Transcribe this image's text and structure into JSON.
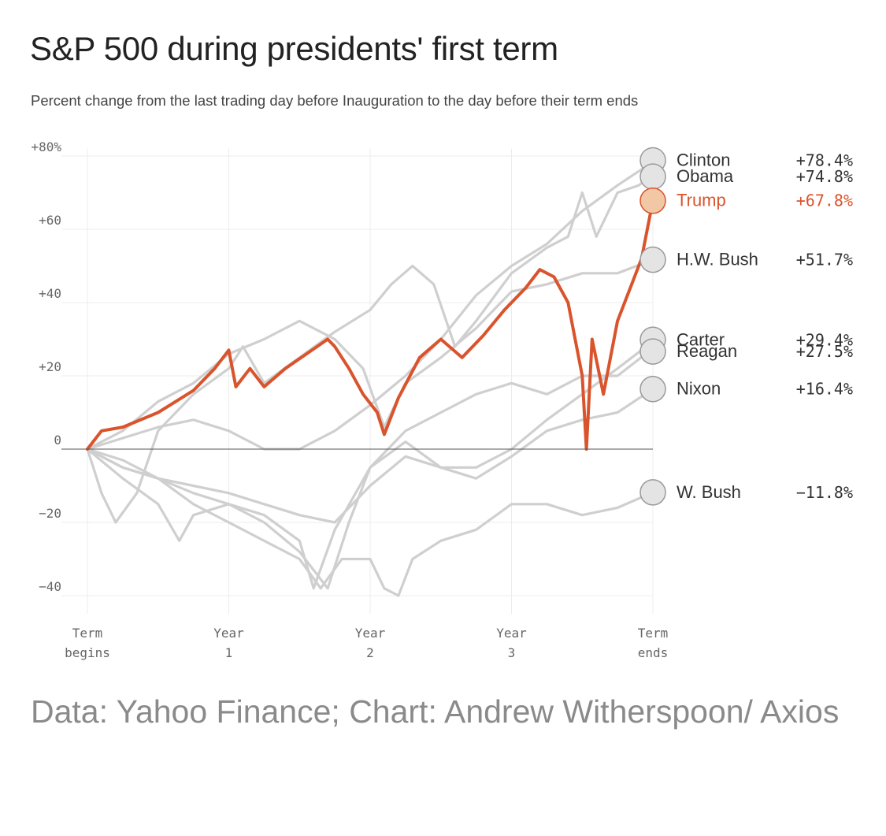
{
  "title": "S&P 500 during presidents' first term",
  "subtitle": "Percent change from the last trading day before Inauguration to the day before their term ends",
  "source": "Data: Yahoo Finance; Chart: Andrew Witherspoon/ Axios",
  "colors": {
    "highlight": "#d9542c",
    "series": "#cfcfcf",
    "grid": "#ececec",
    "baseline": "#555555",
    "axis_text": "#666666",
    "label_text": "#333333"
  },
  "chart_data": {
    "type": "line",
    "title": "S&P 500 during presidents' first term",
    "subtitle": "Percent change from the last trading day before Inauguration to the day before their term ends",
    "xlabel": "",
    "ylabel": "",
    "xlim": [
      0,
      4
    ],
    "ylim": [
      -45,
      82
    ],
    "grid": true,
    "x_ticks": [
      {
        "value": 0,
        "line1": "Term",
        "line2": "begins"
      },
      {
        "value": 1,
        "line1": "Year",
        "line2": "1"
      },
      {
        "value": 2,
        "line1": "Year",
        "line2": "2"
      },
      {
        "value": 3,
        "line1": "Year",
        "line2": "3"
      },
      {
        "value": 4,
        "line1": "Term",
        "line2": "ends"
      }
    ],
    "y_ticks": [
      {
        "value": 80,
        "label": "+80%"
      },
      {
        "value": 60,
        "label": "+60"
      },
      {
        "value": 40,
        "label": "+40"
      },
      {
        "value": 20,
        "label": "+20"
      },
      {
        "value": 0,
        "label": "0"
      },
      {
        "value": -20,
        "label": "−20"
      },
      {
        "value": -40,
        "label": "−40"
      }
    ],
    "series": [
      {
        "name": "Clinton",
        "value_label": "+78.4%",
        "highlight": false,
        "points": [
          [
            0,
            0
          ],
          [
            0.25,
            3
          ],
          [
            0.5,
            6
          ],
          [
            0.75,
            8
          ],
          [
            1,
            5
          ],
          [
            1.25,
            0
          ],
          [
            1.5,
            0
          ],
          [
            1.75,
            5
          ],
          [
            2,
            12
          ],
          [
            2.25,
            20
          ],
          [
            2.5,
            30
          ],
          [
            2.75,
            42
          ],
          [
            3,
            50
          ],
          [
            3.25,
            56
          ],
          [
            3.5,
            65
          ],
          [
            3.75,
            72
          ],
          [
            4,
            78.4
          ]
        ]
      },
      {
        "name": "Obama",
        "value_label": "+74.8%",
        "highlight": false,
        "points": [
          [
            0,
            0
          ],
          [
            0.1,
            -12
          ],
          [
            0.2,
            -20
          ],
          [
            0.35,
            -12
          ],
          [
            0.5,
            5
          ],
          [
            0.75,
            15
          ],
          [
            1,
            22
          ],
          [
            1.1,
            28
          ],
          [
            1.25,
            18
          ],
          [
            1.5,
            25
          ],
          [
            1.75,
            32
          ],
          [
            2,
            38
          ],
          [
            2.15,
            45
          ],
          [
            2.3,
            50
          ],
          [
            2.45,
            45
          ],
          [
            2.6,
            28
          ],
          [
            2.75,
            35
          ],
          [
            3,
            48
          ],
          [
            3.25,
            55
          ],
          [
            3.4,
            58
          ],
          [
            3.5,
            70
          ],
          [
            3.6,
            58
          ],
          [
            3.75,
            70
          ],
          [
            3.9,
            72
          ],
          [
            4,
            74.8
          ]
        ]
      },
      {
        "name": "Trump",
        "value_label": "+67.8%",
        "highlight": true,
        "points": [
          [
            0,
            0
          ],
          [
            0.1,
            5
          ],
          [
            0.25,
            6
          ],
          [
            0.5,
            10
          ],
          [
            0.75,
            16
          ],
          [
            0.9,
            22
          ],
          [
            1,
            27
          ],
          [
            1.05,
            17
          ],
          [
            1.15,
            22
          ],
          [
            1.25,
            17
          ],
          [
            1.4,
            22
          ],
          [
            1.55,
            26
          ],
          [
            1.7,
            30
          ],
          [
            1.75,
            28
          ],
          [
            1.85,
            22
          ],
          [
            1.95,
            15
          ],
          [
            2.05,
            10
          ],
          [
            2.1,
            4
          ],
          [
            2.2,
            14
          ],
          [
            2.35,
            25
          ],
          [
            2.5,
            30
          ],
          [
            2.65,
            25
          ],
          [
            2.8,
            31
          ],
          [
            2.95,
            38
          ],
          [
            3.1,
            44
          ],
          [
            3.2,
            49
          ],
          [
            3.3,
            47
          ],
          [
            3.4,
            40
          ],
          [
            3.5,
            20
          ],
          [
            3.53,
            0
          ],
          [
            3.57,
            30
          ],
          [
            3.65,
            15
          ],
          [
            3.75,
            35
          ],
          [
            3.85,
            45
          ],
          [
            3.92,
            52
          ],
          [
            4,
            67.8
          ]
        ]
      },
      {
        "name": "H.W. Bush",
        "value_label": "+51.7%",
        "highlight": false,
        "points": [
          [
            0,
            0
          ],
          [
            0.25,
            5
          ],
          [
            0.5,
            13
          ],
          [
            0.75,
            18
          ],
          [
            1,
            26
          ],
          [
            1.25,
            30
          ],
          [
            1.5,
            35
          ],
          [
            1.75,
            30
          ],
          [
            1.95,
            22
          ],
          [
            2.1,
            6
          ],
          [
            2.25,
            18
          ],
          [
            2.5,
            25
          ],
          [
            2.75,
            33
          ],
          [
            3,
            43
          ],
          [
            3.25,
            45
          ],
          [
            3.5,
            48
          ],
          [
            3.75,
            48
          ],
          [
            4,
            51.7
          ]
        ]
      },
      {
        "name": "Carter",
        "value_label": "+29.4%",
        "highlight": false,
        "points": [
          [
            0,
            0
          ],
          [
            0.25,
            -5
          ],
          [
            0.5,
            -8
          ],
          [
            0.75,
            -10
          ],
          [
            1,
            -12
          ],
          [
            1.25,
            -15
          ],
          [
            1.5,
            -18
          ],
          [
            1.75,
            -20
          ],
          [
            2,
            -10
          ],
          [
            2.25,
            -2
          ],
          [
            2.5,
            -5
          ],
          [
            2.75,
            -5
          ],
          [
            3,
            0
          ],
          [
            3.25,
            8
          ],
          [
            3.5,
            15
          ],
          [
            3.75,
            22
          ],
          [
            4,
            29.4
          ]
        ]
      },
      {
        "name": "Reagan",
        "value_label": "+27.5%",
        "highlight": false,
        "points": [
          [
            0,
            0
          ],
          [
            0.25,
            -3
          ],
          [
            0.5,
            -8
          ],
          [
            0.75,
            -12
          ],
          [
            1,
            -15
          ],
          [
            1.25,
            -18
          ],
          [
            1.5,
            -25
          ],
          [
            1.6,
            -38
          ],
          [
            1.75,
            -22
          ],
          [
            2,
            -5
          ],
          [
            2.25,
            5
          ],
          [
            2.5,
            10
          ],
          [
            2.75,
            15
          ],
          [
            3,
            18
          ],
          [
            3.25,
            15
          ],
          [
            3.5,
            20
          ],
          [
            3.75,
            20
          ],
          [
            4,
            27.5
          ]
        ]
      },
      {
        "name": "Nixon",
        "value_label": "+16.4%",
        "highlight": false,
        "points": [
          [
            0,
            0
          ],
          [
            0.25,
            -8
          ],
          [
            0.5,
            -15
          ],
          [
            0.65,
            -25
          ],
          [
            0.75,
            -18
          ],
          [
            1,
            -15
          ],
          [
            1.25,
            -20
          ],
          [
            1.5,
            -28
          ],
          [
            1.7,
            -38
          ],
          [
            1.85,
            -20
          ],
          [
            2,
            -5
          ],
          [
            2.25,
            2
          ],
          [
            2.5,
            -5
          ],
          [
            2.75,
            -8
          ],
          [
            3,
            -2
          ],
          [
            3.25,
            5
          ],
          [
            3.5,
            8
          ],
          [
            3.75,
            10
          ],
          [
            4,
            16.4
          ]
        ]
      },
      {
        "name": "W. Bush",
        "value_label": "−11.8%",
        "highlight": false,
        "points": [
          [
            0,
            0
          ],
          [
            0.25,
            -5
          ],
          [
            0.5,
            -8
          ],
          [
            0.75,
            -15
          ],
          [
            1,
            -20
          ],
          [
            1.25,
            -25
          ],
          [
            1.5,
            -30
          ],
          [
            1.65,
            -38
          ],
          [
            1.8,
            -30
          ],
          [
            2,
            -30
          ],
          [
            2.1,
            -38
          ],
          [
            2.2,
            -40
          ],
          [
            2.3,
            -30
          ],
          [
            2.5,
            -25
          ],
          [
            2.75,
            -22
          ],
          [
            3,
            -15
          ],
          [
            3.25,
            -15
          ],
          [
            3.5,
            -18
          ],
          [
            3.75,
            -16
          ],
          [
            4,
            -11.8
          ]
        ]
      }
    ]
  }
}
